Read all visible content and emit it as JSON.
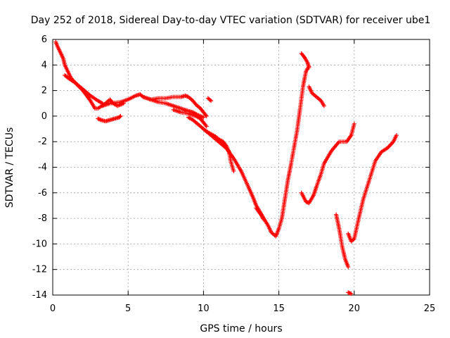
{
  "chart_data": {
    "type": "scatter",
    "title": "Day 252 of 2018, Sidereal Day-to-day VTEC variation (SDTVAR) for receiver ube1",
    "xlabel": "GPS time / hours",
    "ylabel": "SDTVAR / TECUs",
    "xlim": [
      0,
      25
    ],
    "ylim": [
      -14,
      6
    ],
    "xticks": [
      0,
      5,
      10,
      15,
      20,
      25
    ],
    "yticks": [
      -14,
      -12,
      -10,
      -8,
      -6,
      -4,
      -2,
      0,
      2,
      4,
      6
    ],
    "grid": true,
    "legend": "none",
    "marker": "+",
    "color": "#ff0000",
    "series": [
      {
        "x": [
          0.2,
          0.3,
          0.5,
          0.7,
          0.8,
          1.0,
          1.2,
          1.5,
          2.0,
          2.5,
          3.0,
          3.3
        ],
        "y": [
          5.8,
          5.5,
          5.0,
          4.5,
          4.0,
          3.5,
          3.0,
          2.6,
          2.1,
          1.6,
          1.2,
          1.0
        ]
      },
      {
        "x": [
          0.8,
          1.0,
          1.5,
          2.0,
          2.5,
          2.8,
          3.0,
          3.5,
          3.8,
          4.0,
          4.3,
          4.7
        ],
        "y": [
          3.2,
          3.0,
          2.6,
          2.0,
          1.2,
          0.6,
          0.6,
          1.0,
          1.3,
          1.0,
          0.8,
          1.0
        ]
      },
      {
        "x": [
          3.0,
          3.2,
          3.5,
          3.8,
          4.1,
          4.4,
          4.5
        ],
        "y": [
          -0.2,
          -0.3,
          -0.4,
          -0.3,
          -0.2,
          -0.1,
          0.0
        ]
      },
      {
        "x": [
          3.3,
          3.8,
          4.5,
          5.0,
          5.5,
          5.8,
          6.0,
          6.5,
          7.0,
          7.5,
          8.0,
          8.5,
          8.8,
          9.0,
          9.3,
          9.5,
          9.8,
          10.0,
          10.2
        ],
        "y": [
          0.8,
          1.0,
          1.1,
          1.3,
          1.6,
          1.7,
          1.5,
          1.3,
          1.4,
          1.4,
          1.5,
          1.5,
          1.6,
          1.5,
          1.2,
          0.9,
          0.6,
          0.3,
          0.0
        ]
      },
      {
        "x": [
          6.0,
          6.5,
          7.0,
          7.5,
          8.0,
          8.5,
          9.0,
          9.3,
          9.6,
          10.0
        ],
        "y": [
          1.5,
          1.3,
          1.1,
          1.0,
          0.8,
          0.6,
          0.4,
          0.3,
          0.1,
          -0.1
        ]
      },
      {
        "x": [
          8.0,
          8.5,
          9.0,
          9.5,
          9.8,
          10.0,
          10.2
        ],
        "y": [
          0.5,
          0.3,
          0.2,
          0.0,
          -0.2,
          -0.5,
          -0.8
        ]
      },
      {
        "x": [
          9.0,
          9.3,
          9.5,
          9.8,
          10.0,
          10.2,
          10.5,
          10.8,
          11.0,
          11.3,
          11.5,
          11.7,
          11.8,
          12.0
        ],
        "y": [
          -0.1,
          -0.3,
          -0.5,
          -0.8,
          -1.0,
          -1.2,
          -1.4,
          -1.6,
          -1.8,
          -2.0,
          -2.3,
          -2.8,
          -3.5,
          -4.3
        ]
      },
      {
        "x": [
          10.3,
          10.5
        ],
        "y": [
          1.4,
          1.2
        ]
      },
      {
        "x": [
          10.0,
          10.5,
          11.0,
          11.5,
          12.0,
          12.5,
          13.0,
          13.3,
          13.5,
          13.8,
          14.0,
          14.3,
          14.5,
          14.8,
          15.0,
          15.2,
          15.4,
          15.6,
          15.8,
          16.0,
          16.2,
          16.4,
          16.6,
          16.8,
          17.0
        ],
        "y": [
          -1.0,
          -1.5,
          -2.0,
          -2.5,
          -3.3,
          -4.3,
          -5.6,
          -6.4,
          -7.0,
          -7.6,
          -8.0,
          -8.6,
          -9.1,
          -9.4,
          -8.8,
          -8.0,
          -6.5,
          -5.0,
          -3.8,
          -2.5,
          -1.2,
          0.5,
          2.3,
          3.5,
          3.9
        ]
      },
      {
        "x": [
          13.5,
          13.8,
          14.0
        ],
        "y": [
          -7.2,
          -7.7,
          -8.1
        ]
      },
      {
        "x": [
          16.5,
          16.7,
          16.9,
          17.0
        ],
        "y": [
          4.9,
          4.6,
          4.2,
          3.8
        ]
      },
      {
        "x": [
          17.0,
          17.2,
          17.5,
          17.8,
          18.0
        ],
        "y": [
          2.3,
          1.8,
          1.5,
          1.2,
          0.8
        ]
      },
      {
        "x": [
          16.5,
          16.8,
          17.0,
          17.3,
          17.5,
          17.8,
          18.0,
          18.5,
          19.0,
          19.5,
          19.8,
          20.0
        ],
        "y": [
          -6.0,
          -6.7,
          -6.8,
          -6.2,
          -5.5,
          -4.5,
          -3.7,
          -2.7,
          -2.0,
          -2.0,
          -1.5,
          -0.6
        ]
      },
      {
        "x": [
          18.8,
          19.0,
          19.2,
          19.4,
          19.6
        ],
        "y": [
          -7.7,
          -8.8,
          -10.2,
          -11.2,
          -11.8
        ]
      },
      {
        "x": [
          19.6,
          19.8,
          20.0,
          20.3,
          20.6,
          21.0,
          21.4,
          21.8,
          22.2,
          22.6,
          22.8
        ],
        "y": [
          -9.2,
          -9.8,
          -9.6,
          -8.0,
          -6.5,
          -5.0,
          -3.5,
          -2.8,
          -2.5,
          -2.0,
          -1.5
        ]
      },
      {
        "x": [
          19.6,
          19.8
        ],
        "y": [
          -13.8,
          -13.9
        ]
      }
    ]
  }
}
